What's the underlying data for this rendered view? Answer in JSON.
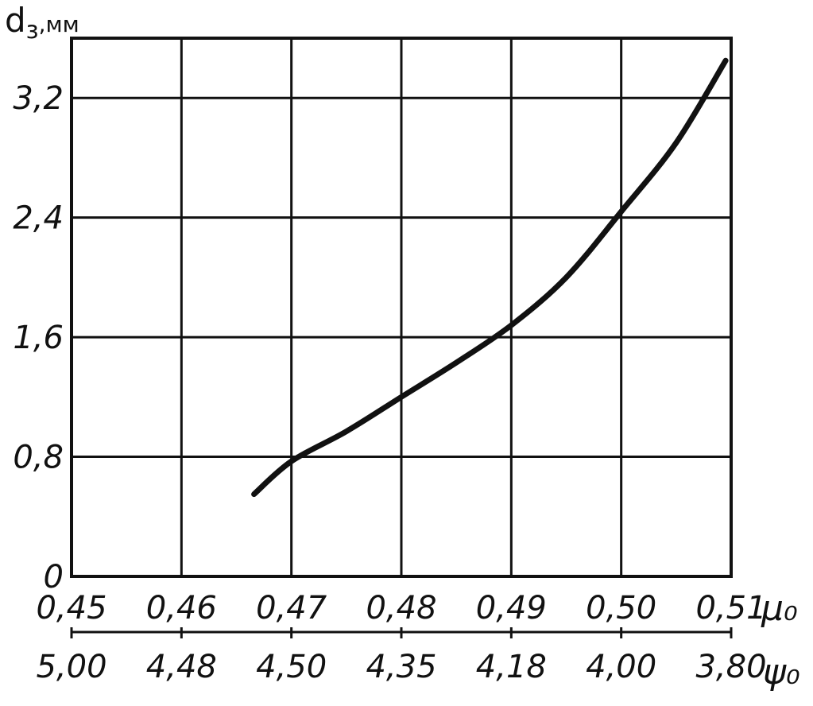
{
  "chart_data": {
    "type": "line",
    "ylabel": "d",
    "ylabel_sub": "з",
    "ylabel_unit": ",мм",
    "ylim": [
      0,
      3.6
    ],
    "yticks": [
      0,
      0.8,
      1.6,
      2.4,
      3.2
    ],
    "ytick_labels": [
      "0",
      "0,8",
      "1,6",
      "2,4",
      "3,2"
    ],
    "xlim": [
      0.45,
      0.51
    ],
    "xticks": [
      0.45,
      0.46,
      0.47,
      0.48,
      0.49,
      0.5,
      0.51
    ],
    "xtick_labels": [
      "0,45",
      "0,46",
      "0,47",
      "0,48",
      "0,49",
      "0,50",
      "0,51"
    ],
    "xlabel": "μ₀",
    "x2_ticks": [
      0.45,
      0.46,
      0.47,
      0.48,
      0.49,
      0.5,
      0.51
    ],
    "x2_tick_labels": [
      "5,00",
      "4,48",
      "4,50",
      "4,35",
      "4,18",
      "4,00",
      "3,80"
    ],
    "x2label": "ψ₀",
    "grid": true,
    "series": [
      {
        "x": [
          0.4666,
          0.47,
          0.475,
          0.48,
          0.485,
          0.49,
          0.495,
          0.5,
          0.505,
          0.5095
        ],
        "y": [
          0.55,
          0.77,
          0.97,
          1.2,
          1.43,
          1.68,
          2.0,
          2.44,
          2.9,
          3.45
        ]
      }
    ]
  }
}
